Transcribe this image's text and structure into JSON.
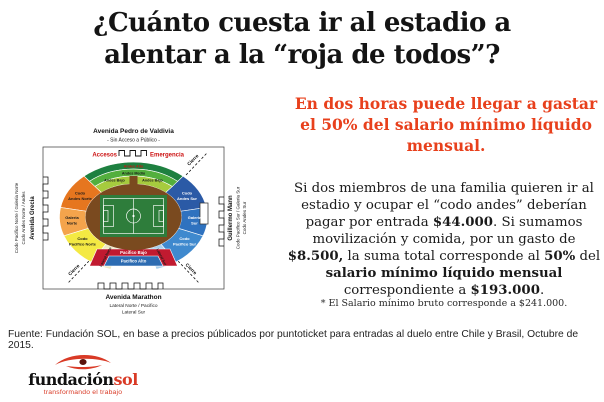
{
  "title": {
    "line1": "¿Cuánto cuesta ir al estadio a",
    "line2": "alentar a la “roja de todos”?"
  },
  "right": {
    "headline": "En dos horas puede llegar a gastar el 50% del salario mínimo líquido mensual.",
    "body_segments": [
      {
        "t": "Si dos miembros de una familia quieren ir al estadio y ocupar el “codo andes” deberían pagar por entrada ",
        "b": false
      },
      {
        "t": "$44.000",
        "b": true
      },
      {
        "t": ". Si sumamos movilización y comida, por un gasto de ",
        "b": false
      },
      {
        "t": "$8.500,",
        "b": true
      },
      {
        "t": " la suma total corresponde al ",
        "b": false
      },
      {
        "t": "50%",
        "b": true
      },
      {
        "t": " del ",
        "b": false
      },
      {
        "t": "salario mínimo líquido mensual",
        "b": true
      },
      {
        "t": " correspondiente a ",
        "b": false
      },
      {
        "t": "$193.000",
        "b": true
      },
      {
        "t": ".",
        "b": false
      }
    ],
    "footnote": "* El Salario mínimo bruto corresponde a $241.000."
  },
  "map": {
    "avenue_top": "Avenida Pedro de Valdivia",
    "avenue_top_note": "- Sin Acceso a Público -",
    "accesos": "Accesos",
    "emergencia": "Emergencia",
    "cierre": "Cierre",
    "avenue_left": "Avenida Grecia",
    "left_row_outer": "Codo Pacifico Norte / Galeria Norte",
    "left_row_inner": "Codo Andes Norte / Andes",
    "avenue_right": "Guillermo Mann",
    "right_row_inner": "Codo Pacifico Sur / Galeria Sur",
    "right_row_outer": "Codo Andes Sur",
    "avenue_bottom": "Avenida Marathon",
    "bottom_row1": "Lateral Norte / Pacifico",
    "bottom_row2": "Lateral Sur",
    "sections": {
      "andes_alto": "Andes Alto",
      "andes_medio": "Andes Medio",
      "andes_bajo_left": "Andes Bajo",
      "andes_bajo_right": "Andes Bajo",
      "codo_andes_norte_l1": "Codo",
      "codo_andes_norte_l2": "Andes Norte",
      "codo_andes_sur_l1": "Codo",
      "codo_andes_sur_l2": "Andes Sur",
      "galeria_norte_l1": "Galeria",
      "galeria_norte_l2": "Norte",
      "galeria_sur_l1": "Galeria",
      "galeria_sur_l2": "Sur",
      "codo_pacifico_norte_l1": "Codo",
      "codo_pacifico_norte_l2": "Pacifico Norte",
      "codo_pacifico_sur_l1": "Codo",
      "codo_pacifico_sur_l2": "Pacifico Sur",
      "lateral_norte": "Lateral Norte",
      "lateral_sur": "Lateral Sur",
      "pacifico_bajo": "Pacifico Bajo",
      "pacifico_alto": "Pacifico Alto"
    },
    "colors": {
      "map_red": "#CC1111",
      "andes_alto": "#1E8040",
      "andes_medio": "#53AF3D",
      "andes_bajo": "#A6CB3E",
      "codo_andes_norte": "#E6761F",
      "galeria_norte": "#F4A44C",
      "codo_pacifico_norte": "#F4E943",
      "lateral_norte": "#EEEAC6",
      "pacifico_bajo": "#C11A30",
      "pacifico_alto": "#2D6CB2",
      "lateral_sur": "#AACFEC",
      "codo_pacifico_sur": "#3F89CE",
      "galeria_sur": "#2F72BF",
      "codo_andes_sur": "#2B5AA6",
      "ring": "#7A4A1F",
      "pitch": "#2E7D3B"
    }
  },
  "source": "Fuente: Fundación SOL, en base a precios públicados por puntoticket para entradas al duelo entre Chile y Brasil, Octubre de 2015.",
  "logo": {
    "name_black": "fundación",
    "name_red": "sol",
    "tagline": "transformando el trabajo",
    "brand_red": "#D93A26"
  },
  "headline_color": "#E8401C"
}
